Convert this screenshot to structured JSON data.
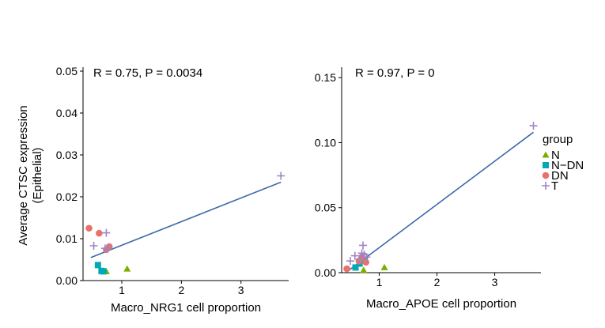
{
  "shared": {
    "ylabel_lines": [
      "Average CTSC expression",
      "(Epithelial)"
    ],
    "legend": {
      "title": "group",
      "placement": "right",
      "entries": [
        {
          "key": "N",
          "label": "N",
          "color": "#7CAE00",
          "shape": "triangle"
        },
        {
          "key": "N-DN",
          "label": "N−DN",
          "color": "#00A9B4",
          "shape": "square"
        },
        {
          "key": "DN",
          "label": "DN",
          "color": "#E8716B",
          "shape": "circle"
        },
        {
          "key": "T",
          "label": "T",
          "color": "#9F84C6",
          "shape": "plus"
        }
      ]
    },
    "fit_color": "#3E6AA6"
  },
  "chart_data": [
    {
      "type": "scatter",
      "title": "",
      "annotation": "R = 0.75, P = 0.0034",
      "xlabel": "Macro_NRG1 cell proportion",
      "ylabel": "Average CTSC expression (Epithelial)",
      "xlim": [
        0.35,
        3.8
      ],
      "ylim": [
        0,
        0.05
      ],
      "xticks": [
        {
          "v": 1,
          "label": "1"
        },
        {
          "v": 2,
          "label": "2"
        },
        {
          "v": 3,
          "label": "3"
        }
      ],
      "yticks": [
        {
          "v": 0,
          "label": "0.00"
        },
        {
          "v": 0.01,
          "label": "0.01"
        },
        {
          "v": 0.02,
          "label": "0.02"
        },
        {
          "v": 0.03,
          "label": "0.03"
        },
        {
          "v": 0.04,
          "label": "0.04"
        },
        {
          "v": 0.05,
          "label": "0.05"
        }
      ],
      "fit": {
        "x": [
          0.48,
          3.67
        ],
        "y": [
          0.0055,
          0.0235
        ]
      },
      "series": [
        {
          "name": "N",
          "x": [
            0.74,
            1.09
          ],
          "y": [
            0.0022,
            0.0028
          ]
        },
        {
          "name": "N-DN",
          "x": [
            0.6,
            0.66,
            0.69
          ],
          "y": [
            0.0037,
            0.0023,
            0.0022
          ]
        },
        {
          "name": "DN",
          "x": [
            0.45,
            0.62,
            0.74,
            0.79
          ],
          "y": [
            0.0125,
            0.0113,
            0.0074,
            0.0081
          ]
        },
        {
          "name": "T",
          "x": [
            0.53,
            0.72,
            0.74,
            0.77,
            3.67
          ],
          "y": [
            0.0083,
            0.0077,
            0.0114,
            0.0078,
            0.025
          ]
        }
      ]
    },
    {
      "type": "scatter",
      "title": "",
      "annotation": "R = 0.97, P = 0",
      "xlabel": "Macro_APOE cell proportion",
      "ylabel": "",
      "xlim": [
        0.35,
        3.8
      ],
      "ylim": [
        0,
        0.155
      ],
      "xticks": [
        {
          "v": 1,
          "label": "1"
        },
        {
          "v": 2,
          "label": "2"
        },
        {
          "v": 3,
          "label": "3"
        }
      ],
      "yticks": [
        {
          "v": 0,
          "label": "0.00"
        },
        {
          "v": 0.05,
          "label": "0.05"
        },
        {
          "v": 0.1,
          "label": "0.10"
        },
        {
          "v": 0.15,
          "label": "0.15"
        }
      ],
      "fit": {
        "x": [
          0.45,
          3.67
        ],
        "y": [
          0.001,
          0.108
        ]
      },
      "series": [
        {
          "name": "N",
          "x": [
            0.73,
            1.09
          ],
          "y": [
            0.002,
            0.004
          ]
        },
        {
          "name": "N-DN",
          "x": [
            0.59,
            0.66,
            0.7,
            0.75
          ],
          "y": [
            0.004,
            0.007,
            0.011,
            0.01
          ]
        },
        {
          "name": "DN",
          "x": [
            0.44,
            0.65,
            0.7,
            0.77
          ],
          "y": [
            0.003,
            0.009,
            0.012,
            0.008
          ]
        },
        {
          "name": "T",
          "x": [
            0.5,
            0.58,
            0.66,
            0.72,
            0.74,
            0.78,
            0.7,
            3.67
          ],
          "y": [
            0.009,
            0.013,
            0.01,
            0.021,
            0.014,
            0.012,
            0.015,
            0.113
          ]
        }
      ]
    }
  ]
}
